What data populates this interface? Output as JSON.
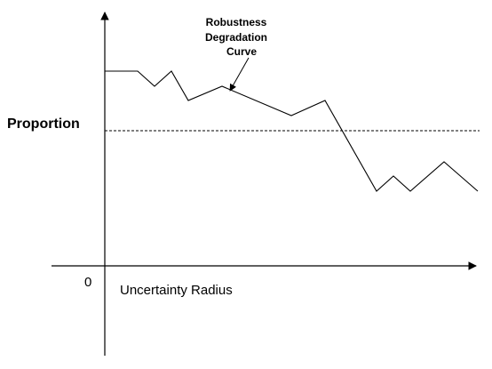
{
  "y_axis_label": "Proportion",
  "x_axis_label": "Uncertainty Radius",
  "origin_label": "0",
  "curve_annotation": [
    "Robustness",
    "Degradation",
    "Curve"
  ],
  "colors": {
    "line": "#000000",
    "background": "#ffffff"
  }
}
